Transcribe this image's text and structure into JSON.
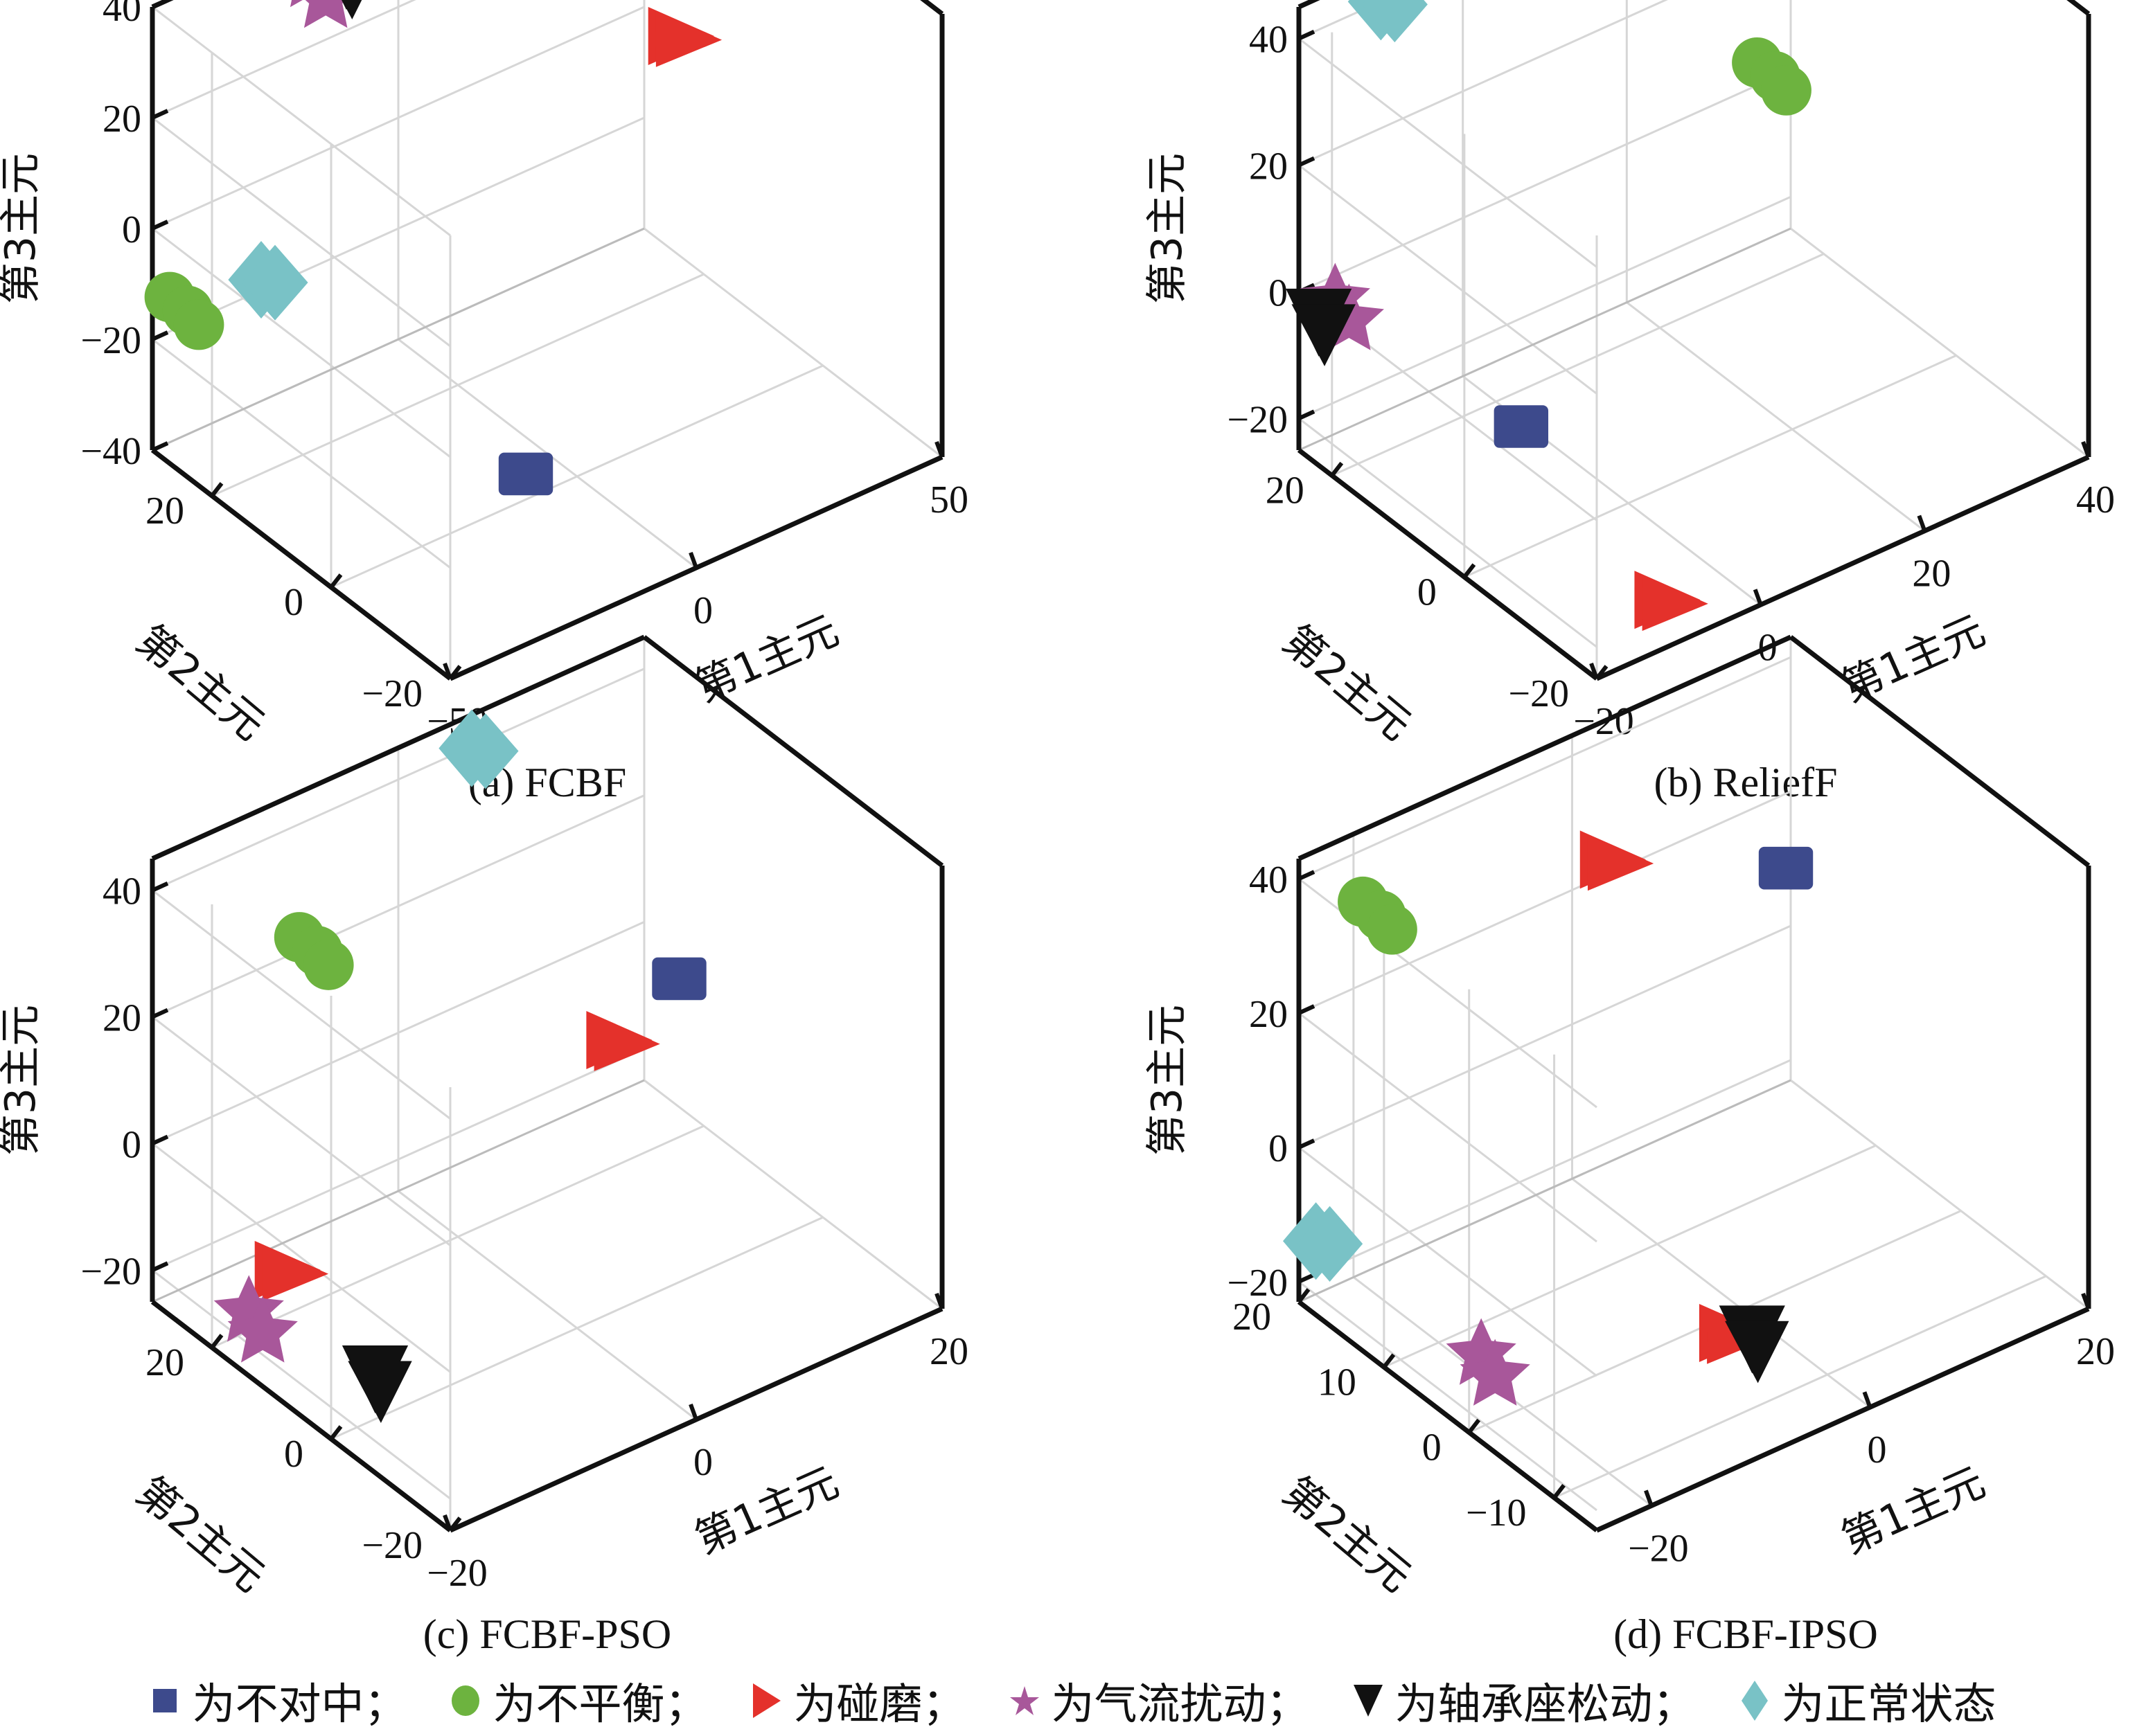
{
  "chart_data": [
    {
      "type": "scatter",
      "title": "(a) FCBF",
      "xlabel": "第1主元",
      "ylabel": "第2主元",
      "zlabel": "第3主元",
      "xlim": [
        -50,
        50
      ],
      "ylim": [
        -20,
        30
      ],
      "zlim": [
        -40,
        40
      ],
      "xticks": [
        "-50",
        "0",
        "50"
      ],
      "yticks": [
        "-20",
        "0",
        "20"
      ],
      "zticks": [
        "-40",
        "-20",
        "0",
        "20",
        "40"
      ],
      "grid": true,
      "clusters": [
        {
          "class": "misalignment",
          "x": -8,
          "y": 2,
          "z": -38
        },
        {
          "class": "imbalance",
          "x": -50,
          "y": 25,
          "z": -10
        },
        {
          "class": "rub",
          "x": 45,
          "y": 20,
          "z": 5
        },
        {
          "class": "airflow",
          "x": -20,
          "y": 28,
          "z": 35
        },
        {
          "class": "bearing-loose",
          "x": -13,
          "y": 28,
          "z": 33
        },
        {
          "class": "normal",
          "x": -40,
          "y": 20,
          "z": -5
        }
      ]
    },
    {
      "type": "scatter",
      "title": "(b) ReliefF",
      "xlabel": "第1主元",
      "ylabel": "第2主元",
      "zlabel": "第3主元",
      "xlim": [
        -20,
        40
      ],
      "ylim": [
        -20,
        25
      ],
      "zlim": [
        -25,
        45
      ],
      "xticks": [
        "-20",
        "0",
        "20",
        "40"
      ],
      "yticks": [
        "-20",
        "0",
        "20"
      ],
      "zticks": [
        "-20",
        "0",
        "20",
        "40"
      ],
      "grid": true,
      "clusters": [
        {
          "class": "misalignment",
          "x": -5,
          "y": 10,
          "z": -18
        },
        {
          "class": "imbalance",
          "x": 35,
          "y": 22,
          "z": 5
        },
        {
          "class": "rub",
          "x": -10,
          "y": -18,
          "z": -20
        },
        {
          "class": "airflow",
          "x": -18,
          "y": 22,
          "z": 0
        },
        {
          "class": "bearing-loose",
          "x": -20,
          "y": 22,
          "z": -2
        },
        {
          "class": "normal",
          "x": -10,
          "y": 25,
          "z": 40
        }
      ]
    },
    {
      "type": "scatter",
      "title": "(c) FCBF-PSO",
      "xlabel": "第1主元",
      "ylabel": "第2主元",
      "zlabel": "第3主元",
      "xlim": [
        -20,
        20
      ],
      "ylim": [
        -20,
        30
      ],
      "zlim": [
        -25,
        45
      ],
      "xticks": [
        "-20",
        "0",
        "20"
      ],
      "yticks": [
        "-20",
        "0",
        "20"
      ],
      "zticks": [
        "-20",
        "0",
        "20",
        "40"
      ],
      "grid": true,
      "clusters": [
        {
          "class": "misalignment",
          "x": 18,
          "y": 20,
          "z": 0
        },
        {
          "class": "imbalance",
          "x": -8,
          "y": 28,
          "z": 22
        },
        {
          "class": "rub",
          "x": 12,
          "y": 18,
          "z": -3
        },
        {
          "class": "rub",
          "x": -14,
          "y": 20,
          "z": -18
        },
        {
          "class": "airflow",
          "x": -17,
          "y": 20,
          "z": -22
        },
        {
          "class": "bearing-loose",
          "x": -14,
          "y": 5,
          "z": -24
        },
        {
          "class": "normal",
          "x": 5,
          "y": 28,
          "z": 42
        }
      ]
    },
    {
      "type": "scatter",
      "title": "(d) FCBF-IPSO",
      "xlabel": "第1主元",
      "ylabel": "第2主元",
      "zlabel": "第3主元",
      "xlim": [
        -25,
        20
      ],
      "ylim": [
        -15,
        20
      ],
      "zlim": [
        -23,
        43
      ],
      "xticks": [
        "-20",
        "0",
        "20"
      ],
      "yticks": [
        "-10",
        "0",
        "10",
        "20"
      ],
      "zticks": [
        "-20",
        "0",
        "20",
        "40"
      ],
      "grid": true,
      "clusters": [
        {
          "class": "misalignment",
          "x": 18,
          "y": 18,
          "z": 12
        },
        {
          "class": "imbalance",
          "x": -18,
          "y": 20,
          "z": 30
        },
        {
          "class": "rub",
          "x": 2,
          "y": 18,
          "z": 25
        },
        {
          "class": "rub",
          "x": -5,
          "y": -5,
          "z": -18
        },
        {
          "class": "airflow",
          "x": -20,
          "y": 5,
          "z": -20
        },
        {
          "class": "bearing-loose",
          "x": -3,
          "y": -5,
          "z": -20
        },
        {
          "class": "normal",
          "x": -25,
          "y": 18,
          "z": -12
        }
      ]
    }
  ],
  "classes": {
    "misalignment": {
      "label": "为不对中；",
      "marker": "square",
      "color": "#3d4a8c"
    },
    "imbalance": {
      "label": "为不平衡；",
      "marker": "circle",
      "color": "#6db33f"
    },
    "rub": {
      "label": "为碰磨；",
      "marker": "triangle-right",
      "color": "#e4312b"
    },
    "airflow": {
      "label": "为气流扰动；",
      "marker": "star",
      "color": "#a8579a"
    },
    "bearing-loose": {
      "label": "为轴承座松动；",
      "marker": "triangle-down",
      "color": "#111111"
    },
    "normal": {
      "label": "为正常状态",
      "marker": "diamond",
      "color": "#79c2c6"
    }
  },
  "legend_order": [
    "misalignment",
    "imbalance",
    "rub",
    "airflow",
    "bearing-loose",
    "normal"
  ]
}
